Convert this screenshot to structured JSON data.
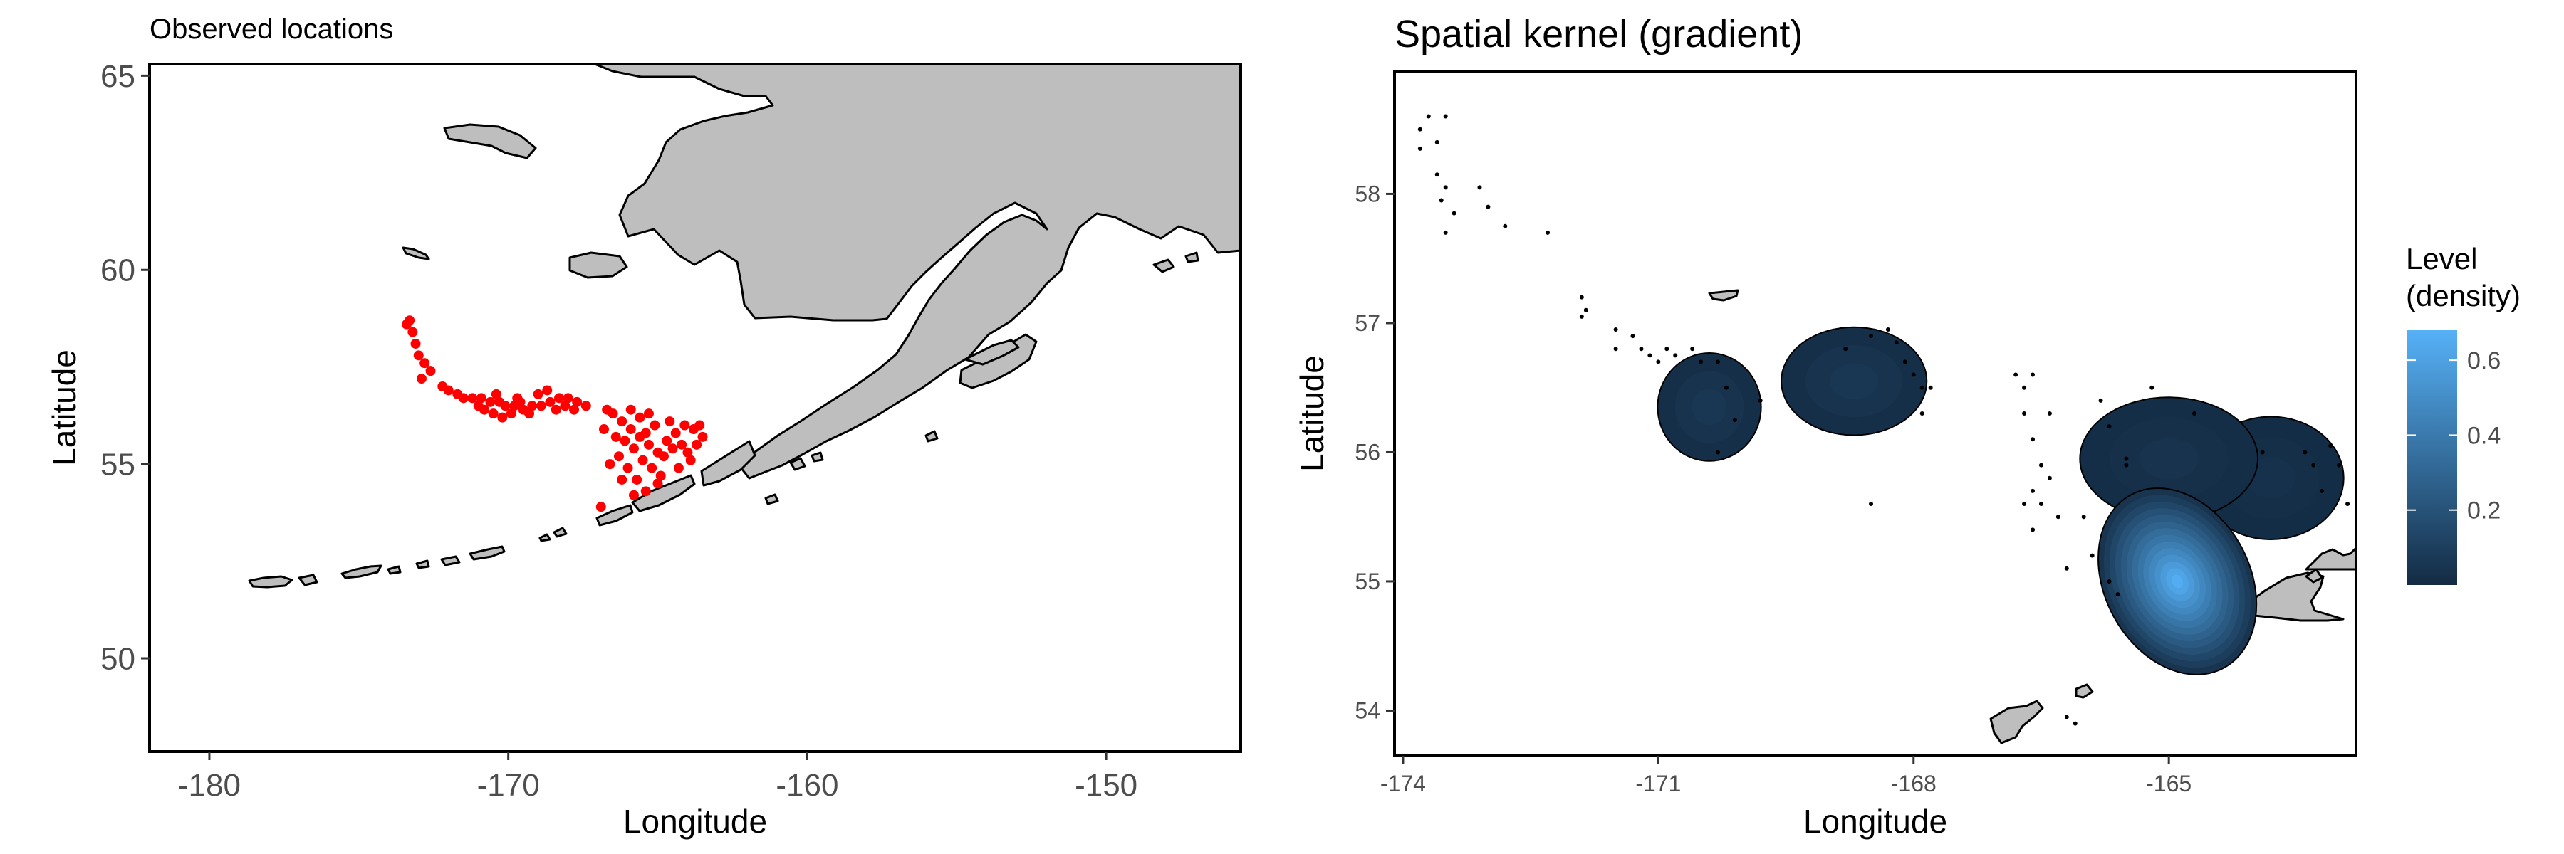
{
  "chart_data": [
    {
      "type": "scatter",
      "title": "Observed locations",
      "xlabel": "Longitude",
      "ylabel": "Latitude",
      "xlim": [
        -182,
        -145.5
      ],
      "ylim": [
        47.6,
        65.3
      ],
      "xticks": [
        -180,
        -170,
        -160,
        -150
      ],
      "yticks": [
        50,
        55,
        60,
        65
      ],
      "grid": false,
      "point_color": "#ff0000",
      "land_color": "#bebebe",
      "points": [
        [
          -173.4,
          58.6
        ],
        [
          -173.2,
          58.4
        ],
        [
          -173.1,
          58.1
        ],
        [
          -173.0,
          57.8
        ],
        [
          -172.8,
          57.6
        ],
        [
          -172.6,
          57.4
        ],
        [
          -172.9,
          57.2
        ],
        [
          -173.3,
          58.7
        ],
        [
          -172.2,
          57.0
        ],
        [
          -172.0,
          56.9
        ],
        [
          -171.7,
          56.8
        ],
        [
          -171.5,
          56.7
        ],
        [
          -171.2,
          56.7
        ],
        [
          -170.9,
          56.7
        ],
        [
          -170.6,
          56.6
        ],
        [
          -170.3,
          56.6
        ],
        [
          -170.1,
          56.5
        ],
        [
          -169.8,
          56.5
        ],
        [
          -169.5,
          56.4
        ],
        [
          -169.2,
          56.5
        ],
        [
          -168.9,
          56.5
        ],
        [
          -168.6,
          56.6
        ],
        [
          -168.3,
          56.7
        ],
        [
          -168.0,
          56.7
        ],
        [
          -167.7,
          56.6
        ],
        [
          -167.4,
          56.5
        ],
        [
          -170.8,
          56.4
        ],
        [
          -170.5,
          56.3
        ],
        [
          -170.2,
          56.2
        ],
        [
          -169.9,
          56.3
        ],
        [
          -169.6,
          56.6
        ],
        [
          -169.3,
          56.3
        ],
        [
          -169.0,
          56.8
        ],
        [
          -168.7,
          56.9
        ],
        [
          -168.4,
          56.4
        ],
        [
          -168.1,
          56.5
        ],
        [
          -167.8,
          56.4
        ],
        [
          -171.0,
          56.5
        ],
        [
          -170.4,
          56.8
        ],
        [
          -169.7,
          56.7
        ],
        [
          -166.5,
          56.3
        ],
        [
          -166.2,
          56.1
        ],
        [
          -165.9,
          55.9
        ],
        [
          -165.6,
          55.7
        ],
        [
          -165.3,
          55.5
        ],
        [
          -165.0,
          55.3
        ],
        [
          -164.7,
          55.6
        ],
        [
          -164.4,
          55.8
        ],
        [
          -164.1,
          56.0
        ],
        [
          -163.8,
          55.9
        ],
        [
          -163.5,
          55.7
        ],
        [
          -165.8,
          55.4
        ],
        [
          -165.5,
          55.1
        ],
        [
          -165.2,
          54.9
        ],
        [
          -164.9,
          54.7
        ],
        [
          -165.7,
          54.6
        ],
        [
          -166.0,
          54.9
        ],
        [
          -166.3,
          55.2
        ],
        [
          -166.1,
          55.6
        ],
        [
          -165.4,
          55.8
        ],
        [
          -165.1,
          56.0
        ],
        [
          -164.8,
          55.2
        ],
        [
          -164.5,
          55.4
        ],
        [
          -164.2,
          55.5
        ],
        [
          -166.4,
          55.7
        ],
        [
          -165.9,
          56.4
        ],
        [
          -165.6,
          56.2
        ],
        [
          -165.3,
          56.3
        ],
        [
          -164.6,
          56.1
        ],
        [
          -164.0,
          55.3
        ],
        [
          -163.7,
          55.5
        ],
        [
          -165.0,
          54.5
        ],
        [
          -165.4,
          54.3
        ],
        [
          -165.8,
          54.2
        ],
        [
          -166.2,
          54.6
        ],
        [
          -166.6,
          55.0
        ],
        [
          -166.8,
          55.9
        ],
        [
          -166.7,
          56.4
        ],
        [
          -164.3,
          54.9
        ],
        [
          -163.9,
          55.1
        ],
        [
          -166.9,
          53.9
        ],
        [
          -163.6,
          56.0
        ]
      ]
    },
    {
      "type": "heatmap",
      "title": "Spatial kernel (gradient)",
      "xlabel": "Longitude",
      "ylabel": "Latitude",
      "xlim": [
        -174.1,
        -162.8
      ],
      "ylim": [
        53.65,
        58.95
      ],
      "xticks": [
        -174,
        -171,
        -168,
        -165
      ],
      "yticks": [
        54,
        55,
        56,
        57,
        58
      ],
      "grid": false,
      "legend_title": "Level\n(density)",
      "legend_title_lines": [
        "Level",
        "(density)"
      ],
      "legend_position": "right",
      "legend_ticks": [
        0.2,
        0.4,
        0.6
      ],
      "color_range": [
        "#132b43",
        "#56b1f7"
      ],
      "level_range": [
        0.0,
        0.68
      ],
      "density_peaks": [
        {
          "lon": -170.4,
          "lat": 56.35,
          "sx": 0.32,
          "sy": 0.22,
          "level": 0.06
        },
        {
          "lon": -168.7,
          "lat": 56.55,
          "sx": 0.45,
          "sy": 0.22,
          "level": 0.06
        },
        {
          "lon": -164.9,
          "lat": 55.0,
          "sx": 0.45,
          "sy": 0.4,
          "level": 0.66
        },
        {
          "lon": -165.0,
          "lat": 55.95,
          "sx": 0.55,
          "sy": 0.25,
          "level": 0.04
        },
        {
          "lon": -163.8,
          "lat": 55.8,
          "sx": 0.45,
          "sy": 0.25,
          "level": 0.03
        }
      ],
      "points": [
        [
          -173.7,
          58.6
        ],
        [
          -173.8,
          58.5
        ],
        [
          -173.6,
          58.4
        ],
        [
          -173.8,
          58.35
        ],
        [
          -173.5,
          58.6
        ],
        [
          -173.6,
          58.15
        ],
        [
          -173.5,
          58.05
        ],
        [
          -173.4,
          57.85
        ],
        [
          -173.55,
          57.95
        ],
        [
          -173.5,
          57.7
        ],
        [
          -173.1,
          58.05
        ],
        [
          -173.0,
          57.9
        ],
        [
          -172.8,
          57.75
        ],
        [
          -172.3,
          57.7
        ],
        [
          -171.9,
          57.2
        ],
        [
          -171.85,
          57.1
        ],
        [
          -171.9,
          57.05
        ],
        [
          -171.5,
          56.95
        ],
        [
          -171.3,
          56.9
        ],
        [
          -171.5,
          56.8
        ],
        [
          -171.2,
          56.8
        ],
        [
          -171.1,
          56.75
        ],
        [
          -171.0,
          56.7
        ],
        [
          -170.9,
          56.8
        ],
        [
          -170.8,
          56.75
        ],
        [
          -170.6,
          56.8
        ],
        [
          -170.5,
          56.7
        ],
        [
          -170.3,
          56.7
        ],
        [
          -170.2,
          56.5
        ],
        [
          -170.1,
          56.25
        ],
        [
          -170.3,
          56.0
        ],
        [
          -169.8,
          56.4
        ],
        [
          -168.8,
          56.8
        ],
        [
          -168.5,
          56.9
        ],
        [
          -168.3,
          56.95
        ],
        [
          -168.2,
          56.85
        ],
        [
          -168.1,
          56.7
        ],
        [
          -168.0,
          56.6
        ],
        [
          -167.9,
          56.5
        ],
        [
          -167.8,
          56.5
        ],
        [
          -167.9,
          56.3
        ],
        [
          -168.5,
          55.6
        ],
        [
          -166.8,
          56.6
        ],
        [
          -166.7,
          56.5
        ],
        [
          -166.6,
          56.6
        ],
        [
          -166.7,
          56.3
        ],
        [
          -166.6,
          56.1
        ],
        [
          -166.4,
          56.3
        ],
        [
          -165.8,
          56.4
        ],
        [
          -165.7,
          56.2
        ],
        [
          -165.2,
          56.5
        ],
        [
          -165.5,
          55.95
        ],
        [
          -165.5,
          55.9
        ],
        [
          -166.5,
          55.9
        ],
        [
          -166.6,
          55.7
        ],
        [
          -166.5,
          55.6
        ],
        [
          -166.4,
          55.8
        ],
        [
          -166.3,
          55.5
        ],
        [
          -166.6,
          55.4
        ],
        [
          -166.7,
          55.6
        ],
        [
          -166.0,
          55.5
        ],
        [
          -165.9,
          55.2
        ],
        [
          -165.7,
          55.0
        ],
        [
          -165.6,
          54.9
        ],
        [
          -166.2,
          55.1
        ],
        [
          -164.7,
          56.3
        ],
        [
          -163.9,
          56.0
        ],
        [
          -163.4,
          56.0
        ],
        [
          -163.3,
          55.9
        ],
        [
          -163.1,
          56.05
        ],
        [
          -163.0,
          55.9
        ],
        [
          -162.9,
          55.6
        ],
        [
          -163.2,
          55.7
        ],
        [
          -166.1,
          53.9
        ],
        [
          -166.2,
          53.95
        ]
      ]
    }
  ]
}
